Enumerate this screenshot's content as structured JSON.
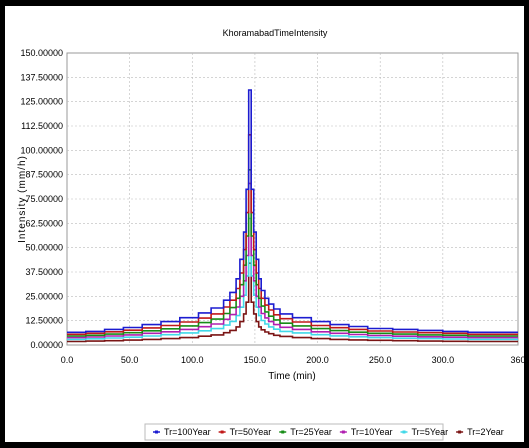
{
  "chart_data": {
    "type": "line",
    "title": "KhoramabadTimeIntensity",
    "xlabel": "Time (min)",
    "ylabel": "Intensity (mm/h)",
    "xlim": [
      0,
      360
    ],
    "ylim": [
      0,
      150
    ],
    "x_ticks": [
      "0.0",
      "50.0",
      "100.0",
      "150.0",
      "200.0",
      "250.0",
      "300.0",
      "360"
    ],
    "y_ticks": [
      "150.00000",
      "137.50000",
      "125.00000",
      "112.50000",
      "100.00000",
      "87.50000",
      "75.00000",
      "62.50000",
      "50.00000",
      "37.50000",
      "25.00000",
      "12.50000",
      "0.00000"
    ],
    "grid": true,
    "legend_position": "bottom",
    "step": true,
    "x": [
      0,
      15,
      30,
      45,
      60,
      75,
      90,
      105,
      115,
      125,
      130,
      135,
      138,
      141,
      143,
      145,
      147,
      149,
      151,
      153,
      155,
      158,
      161,
      165,
      170,
      180,
      195,
      210,
      225,
      240,
      260,
      280,
      300,
      320,
      340,
      360
    ],
    "series": [
      {
        "name": "Tr=100Year",
        "color": "#1c1cd0",
        "values": [
          6.5,
          7,
          8,
          9,
          10.5,
          12,
          14,
          16.5,
          19,
          23,
          27,
          34,
          44,
          58,
          80,
          131,
          80,
          58,
          44,
          34,
          28,
          24,
          21,
          18.5,
          16,
          14,
          12,
          10.5,
          9.5,
          8.5,
          8,
          7.5,
          7,
          6.5,
          6.5,
          6.5
        ]
      },
      {
        "name": "Tr=50Year",
        "color": "#c01818",
        "values": [
          5.5,
          6,
          6.8,
          7.6,
          8.8,
          10,
          11.8,
          13.8,
          16,
          19.5,
          23,
          29,
          37,
          49,
          68,
          108,
          68,
          49,
          37,
          29,
          24,
          20.5,
          18,
          15.5,
          13.5,
          11.8,
          10,
          8.9,
          8,
          7.2,
          6.7,
          6.3,
          6,
          5.5,
          5.5,
          5.5
        ]
      },
      {
        "name": "Tr=25Year",
        "color": "#168c16",
        "values": [
          4.6,
          5,
          5.6,
          6.3,
          7.3,
          8.3,
          9.8,
          11.5,
          13.3,
          16.2,
          19.2,
          24,
          31,
          41,
          56,
          90,
          56,
          41,
          31,
          24,
          20,
          17,
          14.8,
          12.9,
          11.2,
          9.8,
          8.4,
          7.4,
          6.6,
          6,
          5.6,
          5.2,
          5,
          4.6,
          4.6,
          4.6
        ]
      },
      {
        "name": "Tr=10Year",
        "color": "#b01eb0",
        "values": [
          3.8,
          4.1,
          4.6,
          5.2,
          6,
          6.8,
          8,
          9.4,
          10.8,
          13.2,
          15.6,
          19.5,
          25,
          33,
          46,
          83,
          46,
          33,
          25,
          19.5,
          16.2,
          13.9,
          12,
          10.5,
          9.1,
          8,
          6.8,
          6,
          5.4,
          4.9,
          4.5,
          4.2,
          4,
          3.8,
          3.8,
          3.8
        ]
      },
      {
        "name": "Tr=5Year",
        "color": "#40d8e8",
        "values": [
          2.9,
          3.2,
          3.6,
          4,
          4.6,
          5.3,
          6.2,
          7.3,
          8.4,
          10.2,
          12.1,
          15.1,
          19.4,
          25.6,
          35.5,
          65,
          35.5,
          25.6,
          19.4,
          15.1,
          12.6,
          10.8,
          9.3,
          8.1,
          7,
          6.2,
          5.3,
          4.7,
          4.2,
          3.8,
          3.5,
          3.3,
          3.1,
          2.9,
          2.9,
          2.9
        ]
      },
      {
        "name": "Tr=2Year",
        "color": "#7a1414",
        "values": [
          1.8,
          2,
          2.2,
          2.5,
          2.9,
          3.3,
          3.8,
          4.5,
          5.2,
          6.3,
          7.5,
          9.3,
          12,
          16,
          22,
          42,
          22,
          16,
          12,
          9.3,
          7.8,
          6.7,
          5.8,
          5,
          4.4,
          3.8,
          3.3,
          2.9,
          2.6,
          2.4,
          2.2,
          2,
          1.9,
          1.8,
          1.8,
          1.8
        ]
      }
    ]
  }
}
